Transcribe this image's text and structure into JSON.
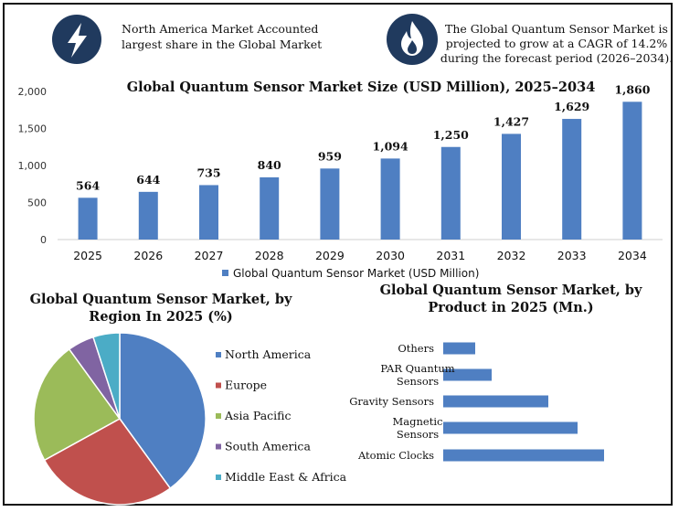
{
  "callouts": [
    {
      "icon": "lightning-icon",
      "text_line1": "North America Market Accounted",
      "text_line2": "largest share in the Global Market"
    },
    {
      "icon": "flame-icon",
      "text_line1": "The Global Quantum Sensor Market is",
      "text_line2": "projected to grow at a CAGR of 14.2%",
      "text_line3": "during the forecast period (2026–2034)."
    }
  ],
  "colors": {
    "bar": "#4f7fc2",
    "icon_circle": "#203a5e",
    "pie": [
      "#4f7fc2",
      "#c0504d",
      "#9bbb59",
      "#8064a2",
      "#4bacc6"
    ]
  },
  "chart_data": [
    {
      "type": "bar",
      "title": "Global Quantum Sensor Market Size (USD Million), 2025–2034",
      "categories": [
        "2025",
        "2026",
        "2027",
        "2028",
        "2029",
        "2030",
        "2031",
        "2032",
        "2033",
        "2034"
      ],
      "values": [
        564,
        644,
        735,
        840,
        959,
        1094,
        1250,
        1427,
        1629,
        1860
      ],
      "value_labels": [
        "564",
        "644",
        "735",
        "840",
        "959",
        "1,094",
        "1,250",
        "1,427",
        "1,629",
        "1,860"
      ],
      "ylim": [
        0,
        2000
      ],
      "yticks": [
        "0",
        "500",
        "1,000",
        "1,500",
        "2,000"
      ],
      "legend": "Global Quantum Sensor Market (USD Million)",
      "grid": false
    },
    {
      "type": "pie",
      "title_line1": "Global Quantum Sensor Market, by",
      "title_line2": "Region In 2025 (%)",
      "labels": [
        "North America",
        "Europe",
        "Asia Pacific",
        "South America",
        "Middle East & Africa"
      ],
      "values": [
        40,
        27,
        23,
        5,
        5
      ],
      "legend_placement": "right"
    },
    {
      "type": "bar",
      "orientation": "horizontal",
      "title_line1": "Global Quantum Sensor Market, by",
      "title_line2": "Product in 2025 (Mn.)",
      "categories": [
        {
          "line1": "Others",
          "line2": ""
        },
        {
          "line1": "PAR Quantum",
          "line2": "Sensors"
        },
        {
          "line1": "Gravity Sensors",
          "line2": ""
        },
        {
          "line1": "Magnetic",
          "line2": "Sensors"
        },
        {
          "line1": "Atomic Clocks",
          "line2": ""
        }
      ],
      "values": [
        35,
        53,
        115,
        147,
        176
      ]
    }
  ]
}
